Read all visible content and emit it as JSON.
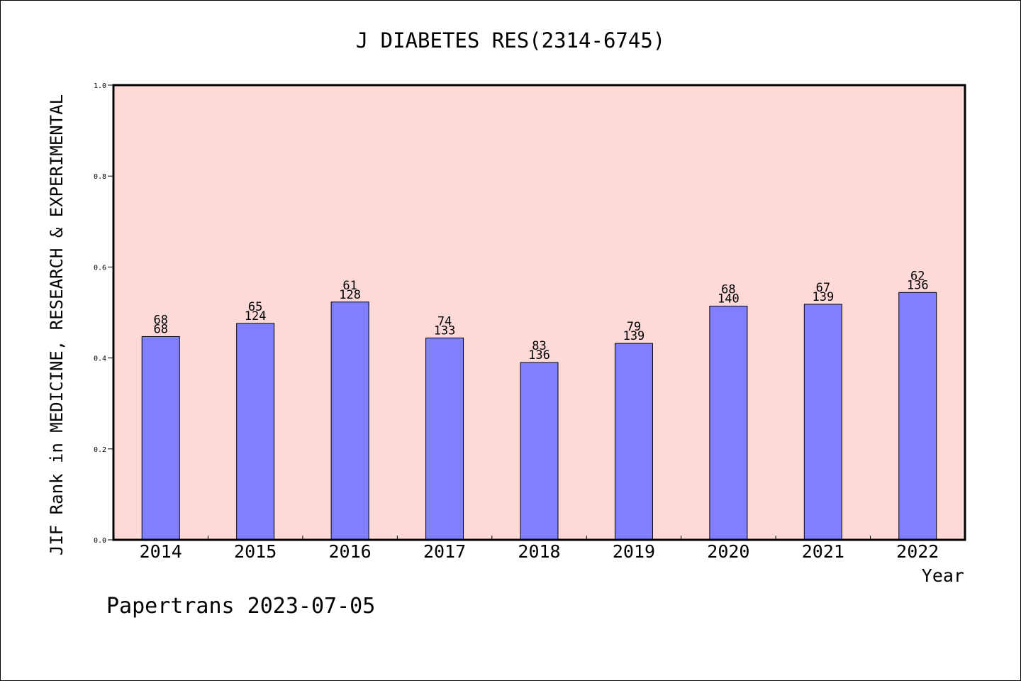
{
  "chart_data": {
    "type": "bar",
    "title": "J DIABETES RES(2314-6745)",
    "xlabel": "Year",
    "ylabel": "JIF Rank in MEDICINE, RESEARCH & EXPERIMENTAL",
    "categories": [
      "2014",
      "2015",
      "2016",
      "2017",
      "2018",
      "2019",
      "2020",
      "2021",
      "2022"
    ],
    "values": [
      0.447,
      0.476,
      0.523,
      0.444,
      0.39,
      0.432,
      0.514,
      0.518,
      0.544
    ],
    "data_labels": [
      {
        "top": "68",
        "bottom": "68"
      },
      {
        "top": "65",
        "bottom": "124"
      },
      {
        "top": "61",
        "bottom": "128"
      },
      {
        "top": "74",
        "bottom": "133"
      },
      {
        "top": "83",
        "bottom": "136"
      },
      {
        "top": "79",
        "bottom": "139"
      },
      {
        "top": "68",
        "bottom": "140"
      },
      {
        "top": "67",
        "bottom": "139"
      },
      {
        "top": "62",
        "bottom": "136"
      }
    ],
    "ylim": [
      0.0,
      1.0
    ],
    "yticks": [
      "0.0",
      "0.2",
      "0.4",
      "0.6",
      "0.8",
      "1.0"
    ],
    "grid": false,
    "colors": {
      "plot_background": "#fddad7",
      "bar_fill": "#8080ff",
      "bar_stroke": "#000000"
    }
  },
  "footer": {
    "watermark": "Papertrans 2023-07-05"
  }
}
